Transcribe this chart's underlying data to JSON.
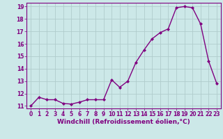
{
  "x": [
    0,
    1,
    2,
    3,
    4,
    5,
    6,
    7,
    8,
    9,
    10,
    11,
    12,
    13,
    14,
    15,
    16,
    17,
    18,
    19,
    20,
    21,
    22,
    23
  ],
  "y": [
    11.0,
    11.7,
    11.5,
    11.5,
    11.2,
    11.15,
    11.3,
    11.5,
    11.5,
    11.5,
    13.1,
    12.5,
    13.0,
    14.5,
    15.5,
    16.4,
    16.9,
    17.2,
    18.9,
    19.0,
    18.9,
    17.6,
    14.6,
    12.8
  ],
  "line_color": "#800080",
  "marker": "D",
  "marker_size": 2,
  "bg_color": "#cce8e8",
  "grid_color": "#b0cccc",
  "xlabel": "Windchill (Refroidissement éolien,°C)",
  "ylim_min": 10.8,
  "ylim_max": 19.3,
  "xlim_min": -0.5,
  "xlim_max": 23.5,
  "yticks": [
    11,
    12,
    13,
    14,
    15,
    16,
    17,
    18,
    19
  ],
  "xticks": [
    0,
    1,
    2,
    3,
    4,
    5,
    6,
    7,
    8,
    9,
    10,
    11,
    12,
    13,
    14,
    15,
    16,
    17,
    18,
    19,
    20,
    21,
    22,
    23
  ],
  "tick_label_fontsize": 5.5,
  "xlabel_fontsize": 6.5,
  "line_width": 1.0
}
